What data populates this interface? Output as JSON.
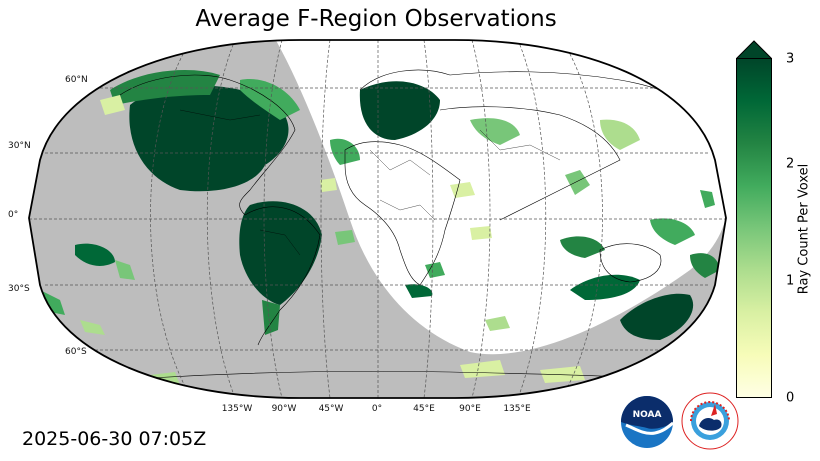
{
  "title": "Average F-Region Observations",
  "timestamp": "2025-06-30 07:05Z",
  "map": {
    "projection": "Robinson",
    "night_color": "#bdbdbd",
    "day_color": "#ffffff",
    "graticule_style": "dashed",
    "lat_labels": [
      "60°N",
      "30°N",
      "0°",
      "30°S",
      "60°S"
    ],
    "lon_labels": [
      "135°W",
      "90°W",
      "45°W",
      "0°",
      "45°E",
      "90°E",
      "135°E"
    ]
  },
  "colorbar": {
    "label": "Ray Count Per Voxel",
    "ticks": [
      "0",
      "1",
      "2",
      "3"
    ],
    "range": [
      0,
      3
    ],
    "extend": "max",
    "colormap": "YlGn",
    "colors": [
      "#ffffe5",
      "#f7fcb9",
      "#d9f0a3",
      "#addd8e",
      "#78c679",
      "#41ab5d",
      "#238443",
      "#006837",
      "#004529"
    ]
  },
  "logos": {
    "noaa_text": "NOAA",
    "nws_text": "NATIONAL WEATHER SERVICE"
  }
}
